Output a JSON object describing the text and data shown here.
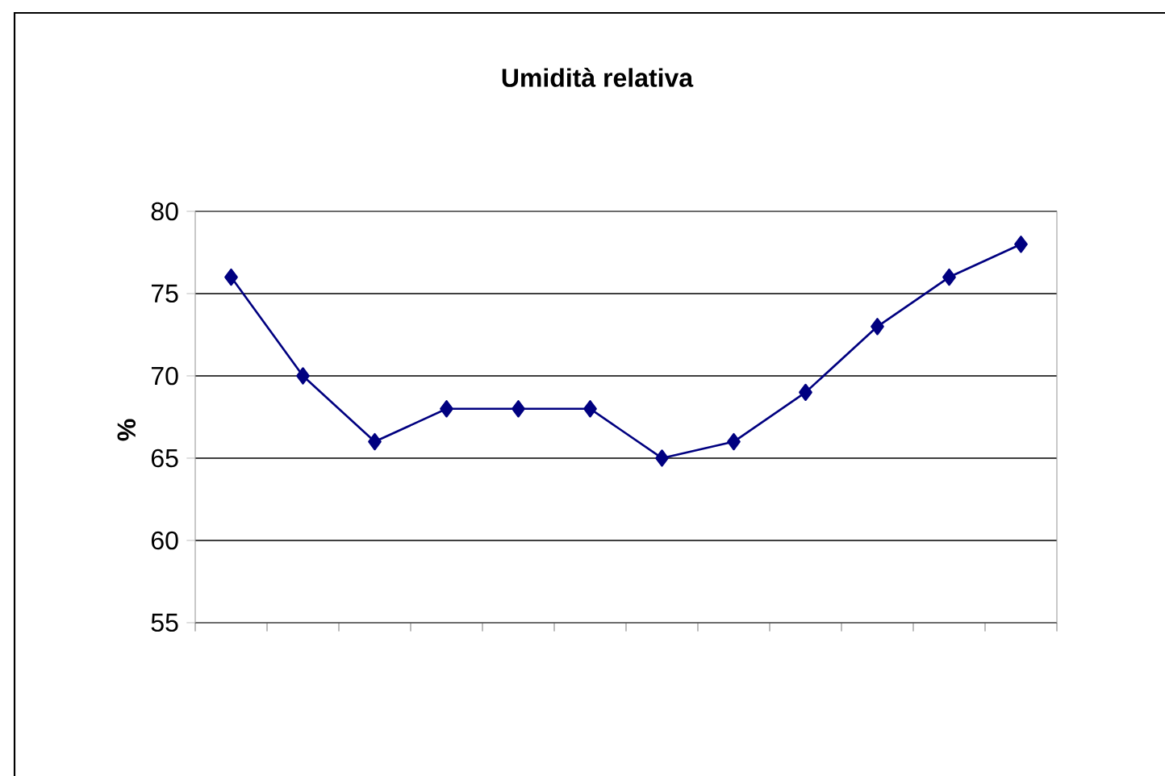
{
  "chart_data": {
    "type": "line",
    "title": "Umidità relativa",
    "ylabel": "%",
    "categories": [
      null,
      null,
      null,
      null,
      null,
      null,
      null,
      null,
      null,
      null,
      null,
      null
    ],
    "values": [
      76,
      70,
      66,
      68,
      68,
      68,
      65,
      66,
      69,
      73,
      76,
      78
    ],
    "color": "#000080",
    "marker": "diamond",
    "ylim": [
      55,
      80
    ],
    "yticks": [
      55,
      60,
      65,
      70,
      75,
      80
    ],
    "grid": "y"
  }
}
